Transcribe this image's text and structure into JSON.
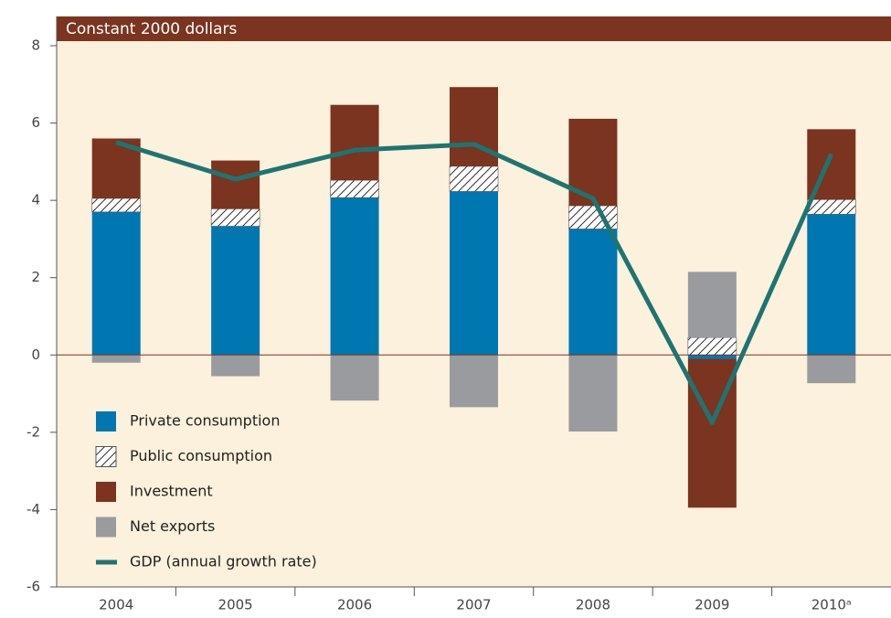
{
  "chart_data": {
    "type": "bar",
    "stacked": true,
    "title": "Constant 2000 dollars",
    "categories": [
      "2004",
      "2005",
      "2006",
      "2007",
      "2008",
      "2009",
      "2010ᵃ"
    ],
    "series": [
      {
        "name": "Private consumption",
        "color": "#0077b0",
        "values": [
          3.7,
          3.33,
          4.07,
          4.23,
          3.26,
          -0.1,
          3.64
        ]
      },
      {
        "name": "Public consumption",
        "color": "#ffffff",
        "hatch": true,
        "values": [
          0.35,
          0.45,
          0.45,
          0.65,
          0.6,
          0.45,
          0.38
        ]
      },
      {
        "name": "Investment",
        "color": "#7a3420",
        "values": [
          1.55,
          1.25,
          1.95,
          2.05,
          2.25,
          -3.85,
          1.82
        ]
      },
      {
        "name": "Net exports",
        "color": "#9a9b9f",
        "values": [
          -0.2,
          -0.55,
          -1.18,
          -1.35,
          -1.98,
          1.7,
          -0.73
        ]
      },
      {
        "name": "GDP (annual growth rate)",
        "color": "#1e7470",
        "type": "line",
        "values": [
          5.5,
          4.55,
          5.3,
          5.45,
          4.05,
          -1.75,
          5.2
        ]
      }
    ],
    "ylim": [
      -6,
      8
    ],
    "yticks": [
      -6,
      -4,
      -2,
      0,
      2,
      4,
      6,
      8
    ],
    "legend": "lower-left"
  }
}
